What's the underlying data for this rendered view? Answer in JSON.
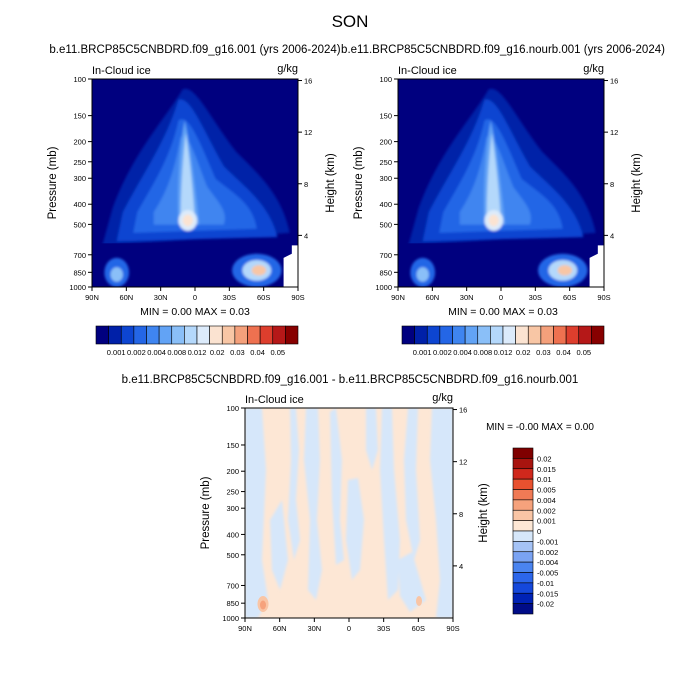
{
  "figure": {
    "title": "SON"
  },
  "colors": {
    "case_scale": [
      "#00007f",
      "#0020a8",
      "#0d45d1",
      "#2466e6",
      "#3f85f0",
      "#62a3f5",
      "#8abff8",
      "#b4d8fb",
      "#dcebfb",
      "#fbe3d1",
      "#f8c6a5",
      "#f4a07b",
      "#ee7150",
      "#dd3e2d",
      "#b51818",
      "#870000"
    ],
    "diff_scale": [
      "#000c87",
      "#0022b5",
      "#1548db",
      "#2c66eb",
      "#4a84f0",
      "#7aa3f3",
      "#a5c3f6",
      "#d6e7fa",
      "#fde7d5",
      "#f9c5a5",
      "#f6a27c",
      "#f07a55",
      "#e8512f",
      "#d0281c",
      "#a8140f",
      "#7f0000"
    ]
  },
  "chart_data": [
    {
      "type": "heatmap",
      "title": "b.e11.BRCP85C5CNBDRD.f09_g16.001 (yrs 2006-2024)",
      "left_label": "In-Cloud ice",
      "right_label": "g/kg",
      "xlabel": "",
      "ylabel": "Pressure (mb)",
      "ylabel_right": "Height (km)",
      "x_ticks": [
        "90N",
        "60N",
        "30N",
        "0",
        "30S",
        "60S",
        "90S"
      ],
      "y_ticks": [
        100,
        150,
        200,
        250,
        300,
        400,
        500,
        700,
        850,
        1000
      ],
      "y_right_ticks": [
        16,
        12,
        8,
        4
      ],
      "stats": "MIN =   0.00  MAX =   0.03",
      "colorbar_labels": [
        "0.001",
        "0.002",
        "0.004",
        "0.008",
        "0.012",
        "0.02",
        "0.03",
        "0.04",
        "0.05"
      ],
      "colorbar_orientation": "horizontal",
      "y_scale": "log",
      "peak": {
        "lat": 0,
        "pressure_mb": 500,
        "value": 0.03
      }
    },
    {
      "type": "heatmap",
      "title": "b.e11.BRCP85C5CNBDRD.f09_g16.nourb.001 (yrs 2006-2024)",
      "left_label": "In-Cloud ice",
      "right_label": "g/kg",
      "xlabel": "",
      "ylabel": "Pressure (mb)",
      "ylabel_right": "Height (km)",
      "x_ticks": [
        "90N",
        "60N",
        "30N",
        "0",
        "30S",
        "60S",
        "90S"
      ],
      "y_ticks": [
        100,
        150,
        200,
        250,
        300,
        400,
        500,
        700,
        850,
        1000
      ],
      "y_right_ticks": [
        16,
        12,
        8,
        4
      ],
      "stats": "MIN =   0.00  MAX =   0.03",
      "colorbar_labels": [
        "0.001",
        "0.002",
        "0.004",
        "0.008",
        "0.012",
        "0.02",
        "0.03",
        "0.04",
        "0.05"
      ],
      "colorbar_orientation": "horizontal",
      "y_scale": "log",
      "peak": {
        "lat": 0,
        "pressure_mb": 500,
        "value": 0.03
      }
    },
    {
      "type": "heatmap",
      "title": "b.e11.BRCP85C5CNBDRD.f09_g16.001 - b.e11.BRCP85C5CNBDRD.f09_g16.nourb.001",
      "left_label": "In-Cloud ice",
      "right_label": "g/kg",
      "xlabel": "",
      "ylabel": "Pressure (mb)",
      "ylabel_right": "Height (km)",
      "x_ticks": [
        "90N",
        "60N",
        "30N",
        "0",
        "30S",
        "60S",
        "90S"
      ],
      "y_ticks": [
        100,
        150,
        200,
        250,
        300,
        400,
        500,
        700,
        850,
        1000
      ],
      "y_right_ticks": [
        16,
        12,
        8,
        4
      ],
      "stats": "MIN =  -0.00  MAX =   0.00",
      "colorbar_labels": [
        "0.02",
        "0.015",
        "0.01",
        "0.005",
        "0.004",
        "0.002",
        "0.001",
        "0",
        "-0.001",
        "-0.002",
        "-0.004",
        "-0.005",
        "-0.01",
        "-0.015",
        "-0.02"
      ],
      "colorbar_orientation": "vertical",
      "y_scale": "log"
    }
  ]
}
